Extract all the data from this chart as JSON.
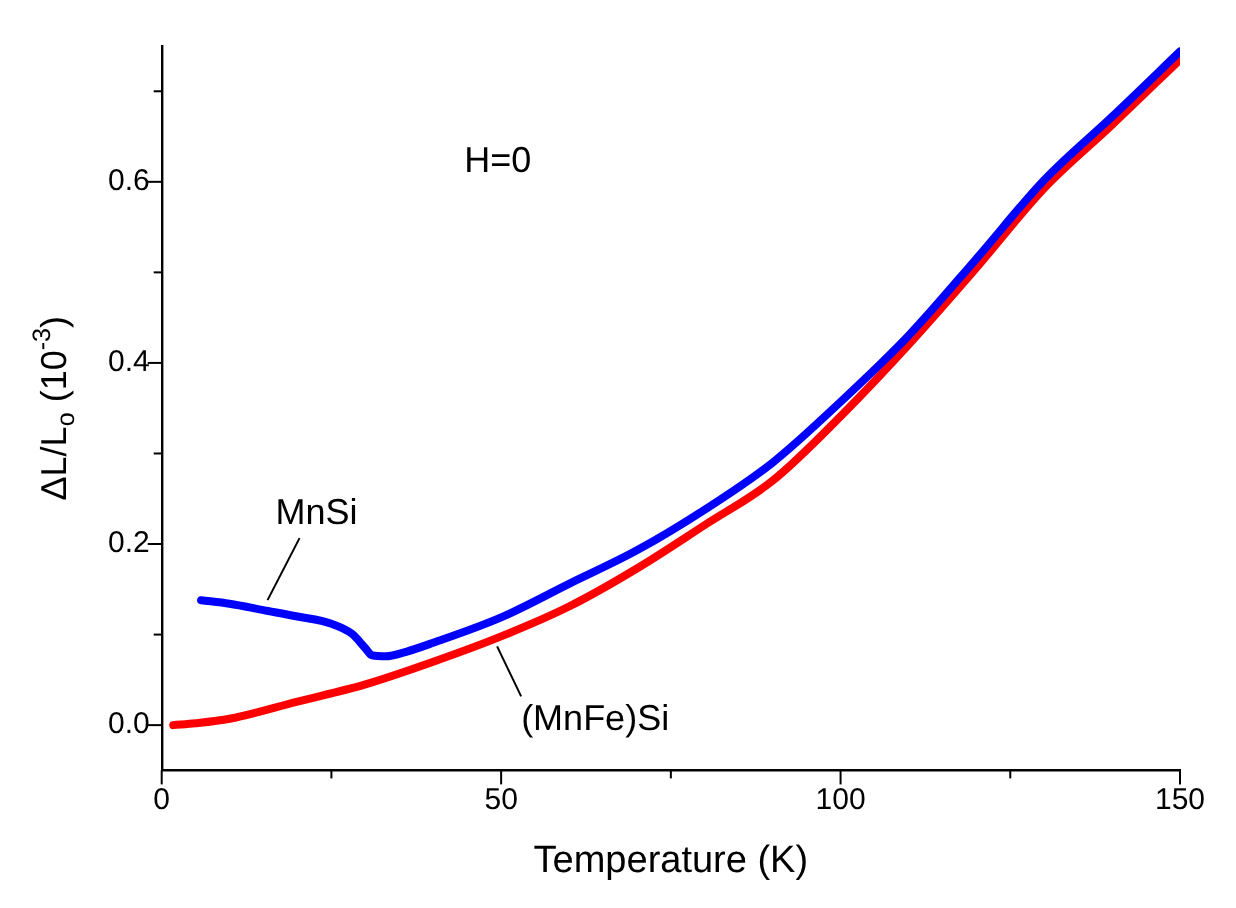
{
  "chart_data": {
    "type": "line",
    "xlabel": "Temperature (K)",
    "ylabel": "ΔL/L$_{o}$ (10$^{-3}$)",
    "xlim": [
      0,
      150
    ],
    "ylim": [
      -0.05,
      0.75
    ],
    "xticks": [
      0,
      {
        "value": 25,
        "label": null
      },
      50,
      {
        "value": 75,
        "label": null
      },
      100,
      {
        "value": 125,
        "label": null
      },
      150
    ],
    "yticks": [
      {
        "value": 0,
        "label": "0.0"
      },
      {
        "value": 0.1,
        "label": null
      },
      {
        "value": 0.2,
        "label": "0.2"
      },
      {
        "value": 0.3,
        "label": null
      },
      {
        "value": 0.4,
        "label": "0.4"
      },
      {
        "value": 0.5,
        "label": null
      },
      {
        "value": 0.6,
        "label": "0.6"
      },
      {
        "value": 0.7,
        "label": null
      }
    ],
    "grid": false,
    "legend": false,
    "marker": "none",
    "line_style": "solid",
    "annotations": [
      "H=0"
    ],
    "series": [
      {
        "name": "MnSi",
        "color": "#0000ff",
        "x": [
          5.8,
          10,
          15,
          20,
          25,
          28,
          30,
          31,
          33,
          36,
          40,
          50,
          60,
          70,
          80,
          90,
          100,
          110,
          120,
          130,
          140,
          150
        ],
        "values": [
          0.138,
          0.134,
          0.127,
          0.12,
          0.112,
          0.101,
          0.085,
          0.077,
          0.076,
          0.081,
          0.091,
          0.119,
          0.156,
          0.193,
          0.238,
          0.29,
          0.357,
          0.43,
          0.515,
          0.602,
          0.672,
          0.744
        ]
      },
      {
        "name": "(MnFe)Si",
        "color": "#ff0000",
        "x": [
          1.7,
          5,
          10,
          20,
          30,
          40,
          50,
          60,
          70,
          80,
          90,
          100,
          110,
          120,
          130,
          140,
          150
        ],
        "values": [
          0,
          0.002,
          0.007,
          0.026,
          0.045,
          0.07,
          0.098,
          0.131,
          0.173,
          0.221,
          0.27,
          0.341,
          0.42,
          0.505,
          0.593,
          0.663,
          0.735
        ]
      }
    ]
  }
}
